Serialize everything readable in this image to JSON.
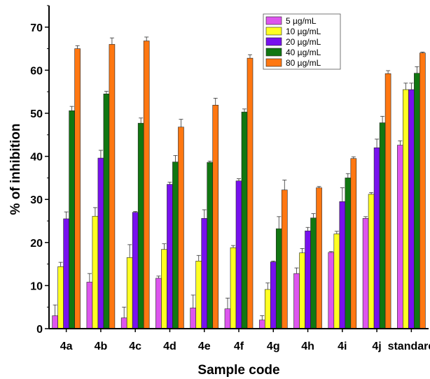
{
  "chart_data": {
    "type": "bar",
    "title": "",
    "xlabel": "Sample code",
    "ylabel": "% of inhibition",
    "ylim": [
      0,
      75
    ],
    "yticks": [
      0,
      10,
      20,
      30,
      40,
      50,
      60,
      70
    ],
    "grid": false,
    "legend_position": "top-right",
    "categories": [
      "4a",
      "4b",
      "4c",
      "4d",
      "4e",
      "4f",
      "4g",
      "4h",
      "4i",
      "4j",
      "standard"
    ],
    "series": [
      {
        "name": "5  µg/mL",
        "color": "#dd55ee",
        "values": [
          3.0,
          10.8,
          2.5,
          11.7,
          4.8,
          4.6,
          2.0,
          12.8,
          17.7,
          25.6,
          42.6
        ],
        "errors": [
          2.5,
          2.0,
          2.5,
          0.5,
          3.0,
          2.5,
          1.0,
          1.3,
          0.2,
          0.4,
          1.0
        ]
      },
      {
        "name": "10 µg/mL",
        "color": "#ffff22",
        "values": [
          14.4,
          26.1,
          16.5,
          18.4,
          15.7,
          18.8,
          9.1,
          17.6,
          22.0,
          31.2,
          55.5
        ],
        "errors": [
          1.0,
          2.0,
          3.0,
          1.3,
          1.3,
          0.5,
          1.5,
          1.0,
          0.6,
          0.4,
          1.5
        ]
      },
      {
        "name": "20 µg/mL",
        "color": "#7711ee",
        "values": [
          25.5,
          39.6,
          27.0,
          33.5,
          25.6,
          34.3,
          15.5,
          22.7,
          29.5,
          42.0,
          55.5
        ],
        "errors": [
          1.6,
          1.8,
          0.2,
          0.5,
          2.0,
          0.5,
          0.2,
          0.8,
          3.2,
          2.0,
          1.5
        ]
      },
      {
        "name": "40 µg/mL",
        "color": "#117711",
        "values": [
          50.6,
          54.5,
          47.7,
          38.7,
          38.6,
          50.3,
          23.2,
          25.7,
          35.0,
          47.8,
          59.3
        ],
        "errors": [
          1.0,
          0.6,
          1.2,
          1.5,
          0.3,
          0.7,
          2.8,
          1.0,
          1.0,
          1.5,
          1.5
        ]
      },
      {
        "name": "80 µg/mL",
        "color": "#ff7711",
        "values": [
          65.0,
          66.0,
          66.8,
          46.8,
          51.9,
          62.8,
          32.2,
          32.7,
          39.5,
          59.2,
          64.0
        ],
        "errors": [
          0.7,
          1.5,
          0.9,
          1.8,
          1.6,
          0.8,
          2.3,
          0.3,
          0.4,
          0.7,
          0.2
        ]
      }
    ]
  }
}
